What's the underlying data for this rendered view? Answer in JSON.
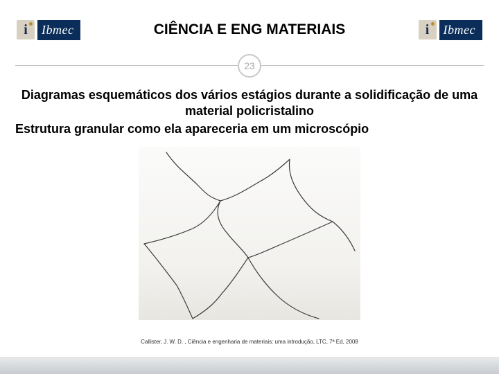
{
  "header": {
    "title": "CIÊNCIA E ENG MATERIAIS",
    "logo_text": "Ibmec",
    "logo_letter": "i"
  },
  "page_number": "23",
  "body": {
    "line1": "Diagramas esquemáticos dos vários estágios durante a solidificação de uma material policristalino",
    "line2": "Estrutura granular como ela apareceria em um microscópio"
  },
  "citation": "Callister, J. W. D. , Ciência e engenharia de materiais: uma introdução, LTC, 7ª Ed, 2008",
  "diagram": {
    "type": "line-drawing",
    "description": "grain-boundary-microstructure",
    "background_gradient": [
      "#fbfbfa",
      "#e8e6e1"
    ],
    "stroke_color": "#3a3a3a",
    "stroke_width": 1.2,
    "paths": [
      "M 40 8 C 55 30, 70 40, 85 55 C 95 65, 100 72, 118 78",
      "M 118 78 C 140 72, 158 60, 175 50 C 190 42, 205 30, 218 18",
      "M 218 18 C 215 40, 225 58, 235 72 C 248 90, 260 100, 280 108",
      "M 118 78 C 110 95, 115 110, 128 125 C 138 138, 150 148, 158 160",
      "M 158 160 C 175 155, 195 145, 212 138 C 235 128, 258 118, 280 108",
      "M 158 160 C 148 175, 135 195, 120 212 C 108 228, 95 238, 78 248",
      "M 158 160 C 168 178, 182 198, 200 215 C 218 232, 238 242, 260 248",
      "M 8 140 C 30 135, 55 128, 78 118 C 95 110, 108 95, 118 78",
      "M 8 140 C 25 160, 40 180, 55 200 C 65 218, 72 235, 78 248",
      "M 280 108 C 295 120, 305 135, 312 150"
    ]
  },
  "colors": {
    "logo_bg": "#0a2d5a",
    "logo_i_bg": "#d8d0c0",
    "divider": "#c0c0c0",
    "badge_border": "#c8c8c8",
    "badge_text": "#a8a8a8",
    "footer_top": "#e6e8ea",
    "footer_bottom": "#c8ccd0"
  }
}
